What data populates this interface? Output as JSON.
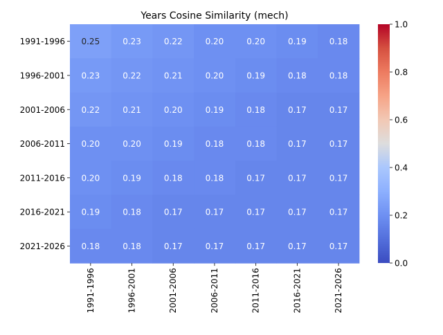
{
  "chart_data": {
    "type": "heatmap",
    "title": "Years Cosine Similarity (mech)",
    "xlabel": "",
    "ylabel": "",
    "row_labels": [
      "1991-1996",
      "1996-2001",
      "2001-2006",
      "2006-2011",
      "2011-2016",
      "2016-2021",
      "2021-2026"
    ],
    "col_labels": [
      "1991-1996",
      "1996-2001",
      "2001-2006",
      "2006-2011",
      "2011-2016",
      "2016-2021",
      "2021-2026"
    ],
    "values": [
      [
        0.25,
        0.23,
        0.22,
        0.2,
        0.2,
        0.19,
        0.18
      ],
      [
        0.23,
        0.22,
        0.21,
        0.2,
        0.19,
        0.18,
        0.18
      ],
      [
        0.22,
        0.21,
        0.2,
        0.19,
        0.18,
        0.17,
        0.17
      ],
      [
        0.2,
        0.2,
        0.19,
        0.18,
        0.18,
        0.17,
        0.17
      ],
      [
        0.2,
        0.19,
        0.18,
        0.18,
        0.17,
        0.17,
        0.17
      ],
      [
        0.19,
        0.18,
        0.17,
        0.17,
        0.17,
        0.17,
        0.17
      ],
      [
        0.18,
        0.18,
        0.17,
        0.17,
        0.17,
        0.17,
        0.17
      ]
    ],
    "colormap": "coolwarm",
    "vmin": 0.0,
    "vmax": 1.0,
    "colorbar_ticks": [
      "0.0",
      "0.2",
      "0.4",
      "0.6",
      "0.8",
      "1.0"
    ],
    "annotation_format": "0.00",
    "grid": false,
    "legend": "colorbar-right"
  }
}
